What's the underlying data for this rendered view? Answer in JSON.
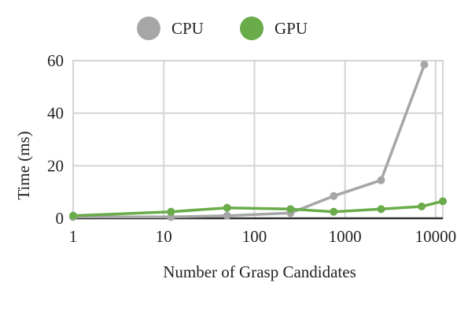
{
  "chart_data": {
    "type": "line",
    "title": "",
    "xlabel": "Number of Grasp Candidates",
    "ylabel": "Time (ms)",
    "xscale": "log",
    "xlim": [
      1,
      12000
    ],
    "ylim": [
      0,
      60
    ],
    "xticks": [
      1,
      10,
      100,
      1000,
      10000
    ],
    "xtick_labels": [
      "1",
      "10",
      "100",
      "1000",
      "10000"
    ],
    "yticks": [
      0,
      20,
      40,
      60
    ],
    "ytick_labels": [
      "0",
      "20",
      "40",
      "60"
    ],
    "grid": true,
    "legend_position": "top-center",
    "series": [
      {
        "name": "CPU",
        "color": "#a6a6a6",
        "x": [
          1,
          12,
          50,
          250,
          750,
          2500,
          7500
        ],
        "y": [
          0.5,
          0.5,
          1,
          2,
          8.5,
          14.5,
          58.5
        ]
      },
      {
        "name": "GPU",
        "color": "#6aab4a",
        "x": [
          1,
          12,
          50,
          250,
          750,
          2500,
          7000,
          12000
        ],
        "y": [
          1,
          2.5,
          4,
          3.5,
          2.5,
          3.5,
          4.5,
          6.5
        ]
      }
    ]
  }
}
